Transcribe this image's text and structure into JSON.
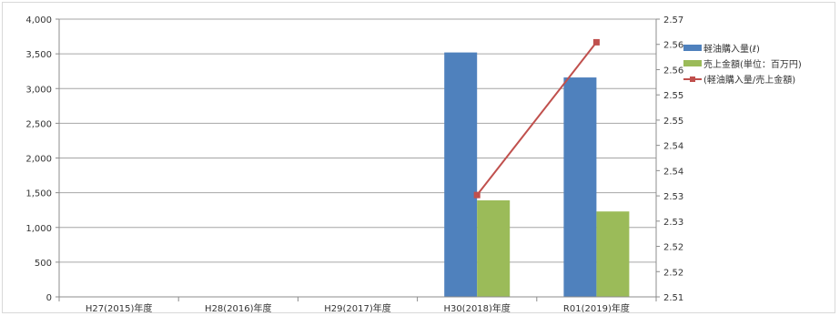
{
  "chart_data": {
    "type": "bar",
    "categories": [
      "H27(2015)年度",
      "H28(2016)年度",
      "H29(2017)年度",
      "H30(2018)年度",
      "R01(2019)年度"
    ],
    "series": [
      {
        "name": "軽油購入量(ℓ)",
        "type": "bar",
        "axis": "left",
        "color": "#4f81bd",
        "values": [
          null,
          null,
          null,
          3520,
          3160
        ]
      },
      {
        "name": "売上金額(単位：百万円)",
        "type": "bar",
        "axis": "left",
        "color": "#9bbb59",
        "values": [
          null,
          null,
          null,
          1390,
          1230
        ]
      },
      {
        "name": "(軽油購入量/売上金額)",
        "type": "line",
        "axis": "right",
        "color": "#c0504d",
        "values": [
          null,
          null,
          null,
          2.532,
          2.565
        ]
      }
    ],
    "y_left": {
      "min": 0,
      "max": 4000,
      "ticks": [
        "0",
        "500",
        "1,000",
        "1,500",
        "2,000",
        "2,500",
        "3,000",
        "3,500",
        "4,000"
      ]
    },
    "y_right": {
      "min": 2.51,
      "max": 2.57,
      "ticks": [
        "2.51",
        "2.52",
        "2.52",
        "2.53",
        "2.53",
        "2.54",
        "2.54",
        "2.55",
        "2.55",
        "2.56",
        "2.56",
        "2.57"
      ]
    },
    "grid": true,
    "legend_position": "right"
  }
}
